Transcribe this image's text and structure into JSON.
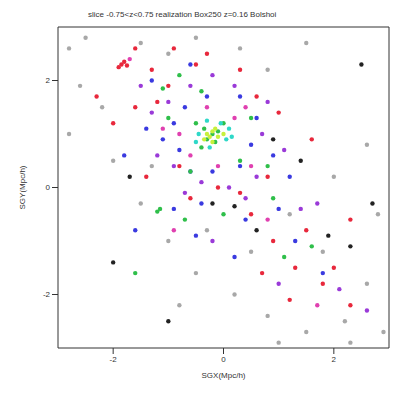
{
  "chart_data": {
    "type": "scatter",
    "title": "slice -0.75<z<0.75 realization Box250 z=0.16 Bolshoi",
    "x_label": "SGX(Mpc/h)",
    "y_label": "SGY(Mpc/h)",
    "xlim": [
      -3,
      3
    ],
    "ylim": [
      -3,
      3
    ],
    "xticks": [
      -2,
      0,
      2
    ],
    "yticks": [
      -2,
      0,
      2
    ],
    "grid": false,
    "marker": "circle",
    "series": [
      {
        "color": "#a8a8a8",
        "values": [
          [
            -2.8,
            2.6
          ],
          [
            -2.5,
            2.8
          ],
          [
            -2.2,
            1.5
          ],
          [
            -2.6,
            1.9
          ],
          [
            -1.5,
            2.7
          ],
          [
            -1.0,
            2.5
          ],
          [
            -0.5,
            2.8
          ],
          [
            0.3,
            2.6
          ],
          [
            0.8,
            2.2
          ],
          [
            1.5,
            2.7
          ],
          [
            -2.8,
            1.0
          ],
          [
            -2.0,
            0.5
          ],
          [
            -1.5,
            -0.3
          ],
          [
            -1.0,
            -1.0
          ],
          [
            -0.5,
            -1.6
          ],
          [
            0.2,
            -2.0
          ],
          [
            0.8,
            -2.4
          ],
          [
            1.5,
            -2.7
          ],
          [
            2.2,
            -2.5
          ],
          [
            2.6,
            -1.8
          ],
          [
            1.8,
            -1.2
          ],
          [
            1.2,
            -0.5
          ],
          [
            2.0,
            0.2
          ],
          [
            2.6,
            0.8
          ],
          [
            2.8,
            -0.5
          ],
          [
            0.5,
            -1.2
          ],
          [
            -0.3,
            -0.8
          ],
          [
            -1.3,
            0.4
          ],
          [
            2.3,
            -2.9
          ],
          [
            1.0,
            -2.9
          ],
          [
            -0.8,
            -2.2
          ],
          [
            2.9,
            -2.7
          ]
        ]
      },
      {
        "color": "#222222",
        "values": [
          [
            -0.2,
            -0.3
          ],
          [
            0.2,
            -0.35
          ],
          [
            2.5,
            2.3
          ],
          [
            1.9,
            -0.9
          ],
          [
            2.3,
            -1.1
          ],
          [
            -1.0,
            -2.5
          ],
          [
            0.9,
            0.9
          ],
          [
            -2.0,
            -1.4
          ],
          [
            1.4,
            0.5
          ],
          [
            -1.7,
            0.2
          ],
          [
            0.6,
            -0.8
          ],
          [
            2.7,
            -0.3
          ]
        ]
      },
      {
        "color": "#e8283c",
        "values": [
          [
            -1.85,
            2.3
          ],
          [
            -1.8,
            2.35
          ],
          [
            -1.9,
            2.25
          ],
          [
            -1.75,
            2.28
          ],
          [
            -1.6,
            2.6
          ],
          [
            -1.3,
            2.2
          ],
          [
            -1.0,
            1.9
          ],
          [
            -0.9,
            2.6
          ],
          [
            -0.5,
            2.3
          ],
          [
            -2.3,
            1.7
          ],
          [
            -2.0,
            1.2
          ],
          [
            -1.6,
            1.5
          ],
          [
            -1.2,
            1.6
          ],
          [
            -0.3,
            2.5
          ],
          [
            0.3,
            2.2
          ],
          [
            0.6,
            1.7
          ],
          [
            1.0,
            1.4
          ],
          [
            0.3,
            -0.1
          ],
          [
            0.5,
            -0.5
          ],
          [
            -0.6,
            -0.2
          ],
          [
            0.9,
            -1.0
          ],
          [
            1.3,
            -1.5
          ],
          [
            1.8,
            -1.8
          ],
          [
            2.3,
            -2.2
          ],
          [
            2.0,
            -1.5
          ],
          [
            1.5,
            -0.8
          ],
          [
            1.6,
            0.9
          ],
          [
            -1.4,
            0.2
          ],
          [
            2.3,
            -0.6
          ],
          [
            1.2,
            -2.1
          ],
          [
            0.7,
            -1.6
          ],
          [
            -0.8,
            0.4
          ],
          [
            0.8,
            0.2
          ],
          [
            -0.1,
            0.0
          ]
        ]
      },
      {
        "color": "#3a3ae0",
        "values": [
          [
            -0.9,
            1.2
          ],
          [
            -0.7,
            1.5
          ],
          [
            -0.8,
            0.7
          ],
          [
            -0.6,
            0.3
          ],
          [
            -0.2,
            0.3
          ],
          [
            0.3,
            0.4
          ],
          [
            0.5,
            0.8
          ],
          [
            0.6,
            1.3
          ],
          [
            0.3,
            1.7
          ],
          [
            -0.3,
            1.7
          ],
          [
            -1.1,
            0.9
          ],
          [
            -0.9,
            -0.4
          ],
          [
            -0.5,
            -0.9
          ],
          [
            0.4,
            -0.6
          ],
          [
            1.0,
            -0.4
          ],
          [
            1.3,
            -1.0
          ],
          [
            -1.4,
            1.1
          ],
          [
            -1.8,
            0.6
          ],
          [
            -0.4,
            -0.3
          ],
          [
            0.9,
            0.6
          ],
          [
            1.2,
            0.2
          ],
          [
            -1.6,
            -0.8
          ],
          [
            0.2,
            -1.3
          ],
          [
            1.8,
            -1.6
          ],
          [
            -1.3,
            2.0
          ],
          [
            -0.6,
            2.3
          ]
        ]
      },
      {
        "color": "#9a3ad8",
        "values": [
          [
            -1.0,
            1.6
          ],
          [
            -0.9,
            0.4
          ],
          [
            -0.6,
            1.9
          ],
          [
            0.2,
            1.9
          ],
          [
            0.7,
            1.0
          ],
          [
            0.6,
            0.2
          ],
          [
            0.1,
            0.0
          ],
          [
            -0.4,
            0.1
          ],
          [
            -1.2,
            0.6
          ],
          [
            -1.3,
            1.4
          ],
          [
            -0.7,
            -0.1
          ],
          [
            0.4,
            -0.2
          ],
          [
            1.1,
            0.7
          ],
          [
            0.8,
            1.6
          ],
          [
            -0.2,
            2.1
          ],
          [
            -1.5,
            1.9
          ],
          [
            1.4,
            -0.4
          ],
          [
            2.1,
            -1.9
          ],
          [
            1.0,
            -1.8
          ],
          [
            -0.2,
            -1.0
          ],
          [
            2.6,
            -2.3
          ],
          [
            1.7,
            -0.3
          ]
        ]
      },
      {
        "color": "#e040b0",
        "values": [
          [
            -0.8,
            1.0
          ],
          [
            -0.6,
            0.6
          ],
          [
            0.4,
            1.5
          ],
          [
            0.5,
            0.4
          ],
          [
            -0.1,
            0.4
          ],
          [
            -1.1,
            1.1
          ],
          [
            -0.3,
            1.5
          ],
          [
            0.2,
            1.3
          ],
          [
            0.8,
            -0.6
          ],
          [
            1.7,
            -2.2
          ],
          [
            -1.7,
            2.4
          ],
          [
            -0.9,
            -0.8
          ]
        ]
      },
      {
        "color": "#2fbf4a",
        "values": [
          [
            -0.3,
            0.9
          ],
          [
            -0.2,
            1.0
          ],
          [
            -0.1,
            1.05
          ],
          [
            -0.35,
            1.1
          ],
          [
            -0.15,
            0.85
          ],
          [
            0.0,
            1.2
          ],
          [
            -0.5,
            1.2
          ],
          [
            -0.4,
            0.75
          ],
          [
            -1.2,
            -0.45
          ],
          [
            -1.15,
            -0.4
          ],
          [
            0.0,
            -0.5
          ],
          [
            -1.1,
            1.85
          ],
          [
            -0.8,
            2.1
          ],
          [
            -0.4,
            1.8
          ],
          [
            0.5,
            1.3
          ],
          [
            0.9,
            -0.2
          ],
          [
            1.1,
            -1.3
          ],
          [
            -1.6,
            -1.6
          ],
          [
            0.8,
            0.4
          ],
          [
            -0.7,
            -0.6
          ],
          [
            1.6,
            -1.1
          ],
          [
            -0.6,
            0.3
          ],
          [
            0.3,
            0.5
          ],
          [
            -1.0,
            1.3
          ]
        ]
      },
      {
        "color": "#2fd8c8",
        "values": [
          [
            -0.45,
            1.0
          ],
          [
            0.05,
            0.9
          ],
          [
            -0.3,
            1.25
          ],
          [
            -0.05,
            1.2
          ],
          [
            -0.5,
            0.85
          ],
          [
            0.1,
            1.1
          ],
          [
            -0.25,
            0.75
          ],
          [
            0.15,
            0.95
          ]
        ]
      },
      {
        "color": "#c8f03c",
        "values": [
          [
            -0.25,
            0.95
          ],
          [
            -0.2,
            1.05
          ],
          [
            -0.1,
            0.95
          ],
          [
            -0.3,
            1.0
          ],
          [
            -0.15,
            1.1
          ],
          [
            0.0,
            1.0
          ],
          [
            -0.35,
            0.9
          ],
          [
            -0.2,
            0.85
          ]
        ]
      }
    ]
  }
}
